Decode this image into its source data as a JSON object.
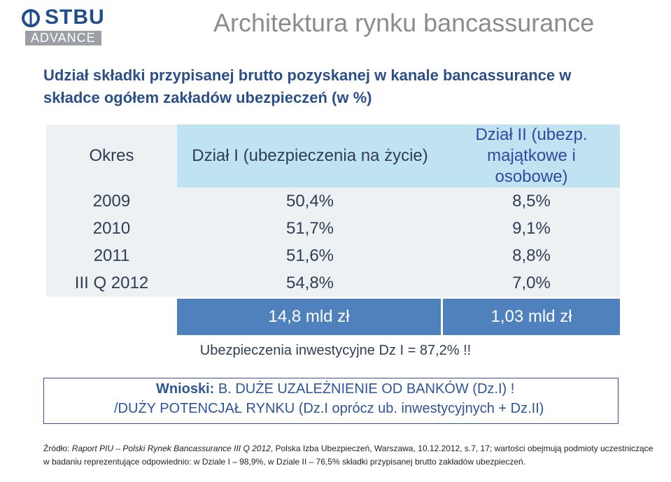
{
  "logo": {
    "brand": "STBU",
    "sub": "ADVANCE"
  },
  "title": "Architektura rynku bancassurance",
  "subtitle": "Udział składki przypisanej brutto pozyskanej w kanale bancassurance w składce ogółem zakładów ubezpieczeń (w %)",
  "table": {
    "headers": [
      "Okres",
      "Dział I (ubezpieczenia na życie)",
      "Dział II (ubezp. majątkowe i osobowe)"
    ],
    "rows": [
      [
        "2009",
        "50,4%",
        "8,5%"
      ],
      [
        "2010",
        "51,7%",
        "9,1%"
      ],
      [
        "2011",
        "51,6%",
        "8,8%"
      ],
      [
        "III Q 2012",
        "54,8%",
        "7,0%"
      ]
    ],
    "totals": [
      "14,8 mld zł",
      "1,03 mld zł"
    ]
  },
  "note": "Ubezpieczenia inwestycyjne Dz I = 87,2% !!",
  "conclusions": {
    "label": "Wnioski:",
    "line1": "B. DUŻE UZALEŻNIENIE OD BANKÓW (Dz.I) !",
    "line2": "/DUŻY POTENCJAŁ RYNKU (Dz.I oprócz ub. inwestycyjnych + Dz.II)"
  },
  "source": {
    "prefix": "Źródło: ",
    "italic": "Raport PIU – Polski Rynek Bancassurance III Q 2012",
    "rest": ", Polska Izba Ubezpieczeń, Warszawa, 10.12.2012, s.7, 17; wartości obejmują podmioty uczestniczące w badaniu reprezentujące odpowiednio: w Dziale I – 98,9%, w Dziale II – 76,5% składki przypisanej brutto zakładów ubezpieczeń."
  }
}
